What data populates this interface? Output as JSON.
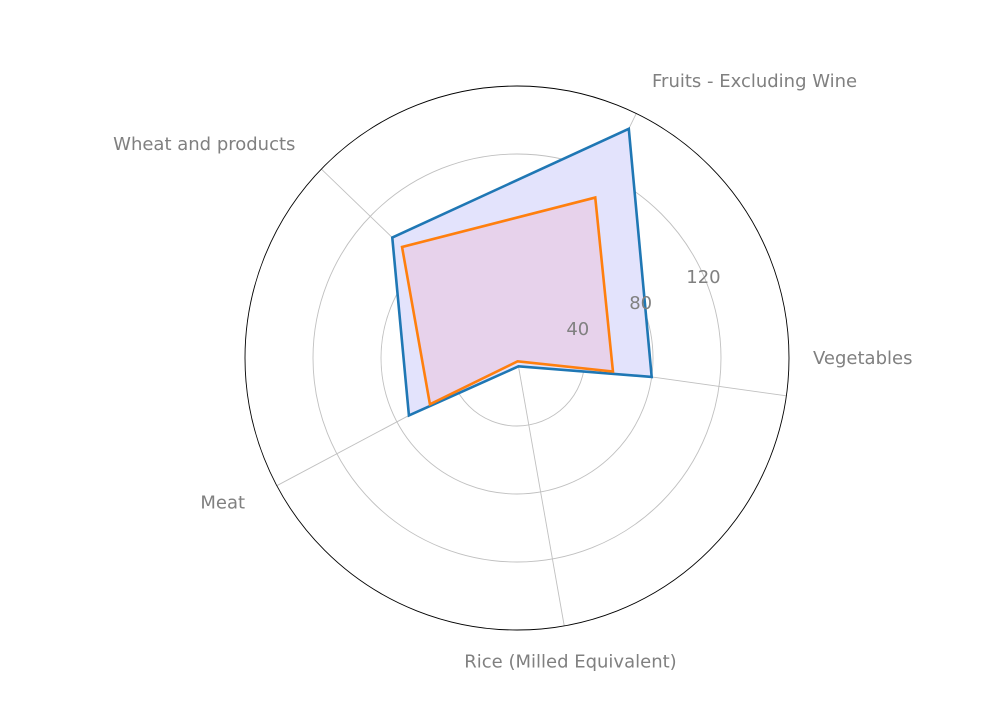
{
  "chart_data": {
    "type": "radar",
    "categories": [
      "Vegetables",
      "Fruits - Excluding Wine",
      "Wheat and products",
      "Meat",
      "Rice (Milled Equivalent)"
    ],
    "series": [
      {
        "color": "#1f77b4",
        "fill": "#e3e3fc",
        "values": [
          80,
          150,
          102,
          72,
          5
        ]
      },
      {
        "color": "#ff7f0e",
        "fill": "#e8cce6",
        "values": [
          57,
          105,
          94,
          58,
          2
        ]
      }
    ],
    "rticks": [
      40,
      80,
      120
    ],
    "rlim": [
      0,
      160
    ],
    "grid": true
  }
}
